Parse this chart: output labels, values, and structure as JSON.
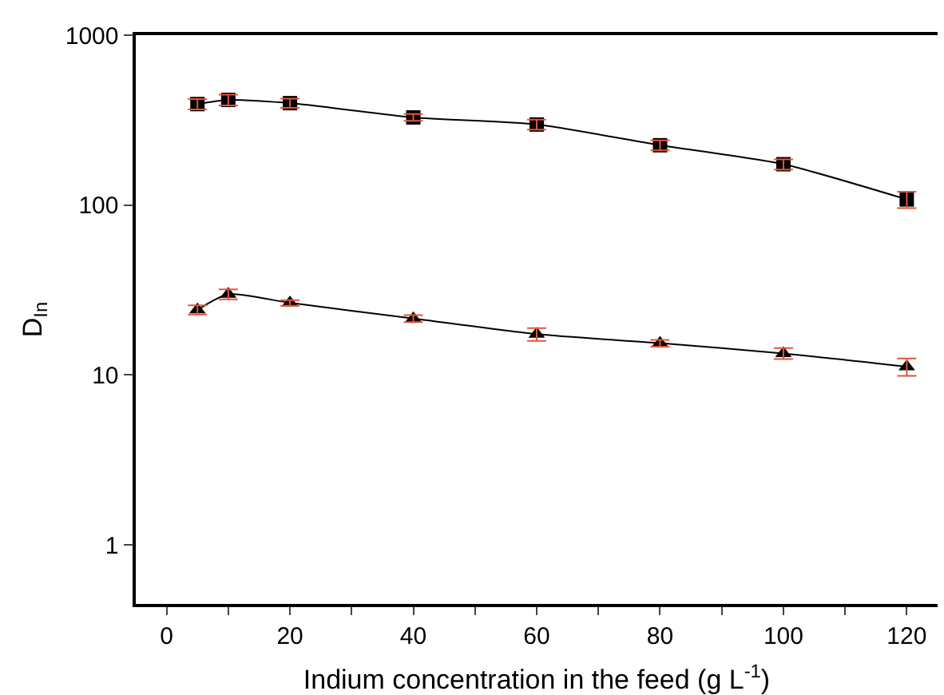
{
  "chart_data": {
    "type": "line",
    "xlabel": "Indium concentration in the feed (g L$^{-1}$)",
    "ylabel": "D$_{In}$",
    "x": [
      5,
      10,
      20,
      40,
      60,
      80,
      100,
      120
    ],
    "series": [
      {
        "color": "#000000",
        "marker": "square",
        "values": [
          393,
          416,
          398,
          328,
          298,
          225,
          174,
          108
        ],
        "errors": [
          28,
          30,
          25,
          15,
          20,
          15,
          12,
          12
        ]
      },
      {
        "color": "#000000",
        "marker": "triangle",
        "values": [
          24.2,
          29.9,
          26.6,
          21.5,
          17.4,
          15.4,
          13.4,
          11.2
        ],
        "errors": [
          1.5,
          2,
          1,
          1,
          1.5,
          0.7,
          1,
          1.3
        ]
      }
    ],
    "log": "y",
    "xlim": [
      -5,
      125
    ],
    "ylim": [
      0.45,
      1000
    ],
    "xticks": [
      0,
      {
        "value": 10,
        "label": null
      },
      20,
      {
        "value": 30,
        "label": null
      },
      40,
      {
        "value": 50,
        "label": null
      },
      60,
      {
        "value": 70,
        "label": null
      },
      80,
      {
        "value": 90,
        "label": null
      },
      100,
      {
        "value": 110,
        "label": null
      },
      120
    ],
    "yticks": [
      1,
      10,
      100,
      1000
    ],
    "grid": false,
    "line_style": "solid"
  }
}
